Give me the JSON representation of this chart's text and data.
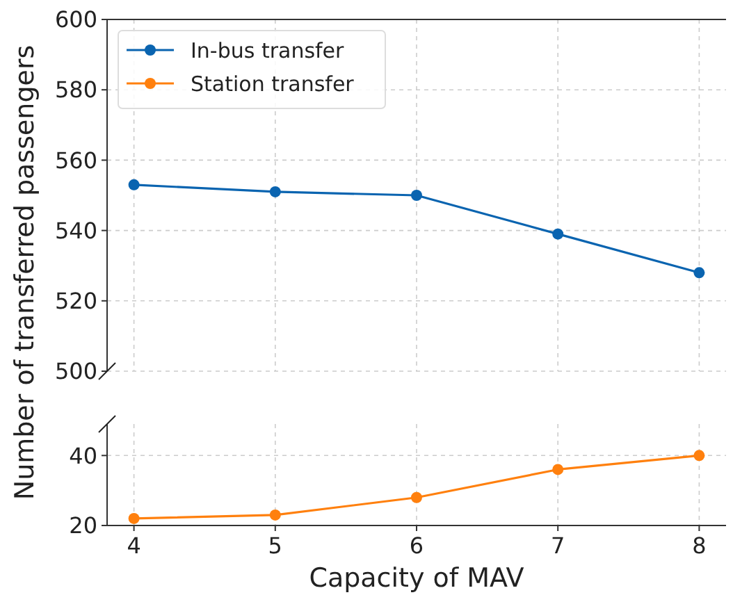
{
  "chart_data": [
    {
      "type": "line",
      "ylabel": "Number of transferred passengers",
      "x": [
        4,
        5,
        6,
        7,
        8
      ],
      "xlim": [
        3.81,
        8.19
      ],
      "xticks": [
        4,
        5,
        6,
        7,
        8
      ],
      "ylim": [
        500,
        600
      ],
      "yticks": [
        500,
        520,
        540,
        560,
        580,
        600
      ],
      "tick_labels": "y",
      "grid": true,
      "legend": "top left",
      "marker": "circle",
      "line_style": "solid",
      "series": [
        {
          "name": "In-bus transfer",
          "color": "#0a64b0",
          "values": [
            553,
            551,
            550,
            539,
            528
          ]
        }
      ]
    },
    {
      "type": "line",
      "xlabel": "Capacity of MAV",
      "x": [
        4,
        5,
        6,
        7,
        8
      ],
      "xlim": [
        3.81,
        8.19
      ],
      "xticks": [
        4,
        5,
        6,
        7,
        8
      ],
      "ylim": [
        20,
        49
      ],
      "yticks": [
        20,
        40
      ],
      "grid": true,
      "marker": "circle",
      "line_style": "solid",
      "series": [
        {
          "name": "Station transfer",
          "color": "#ff800e",
          "values": [
            22,
            23,
            28,
            36,
            40
          ]
        }
      ]
    }
  ]
}
